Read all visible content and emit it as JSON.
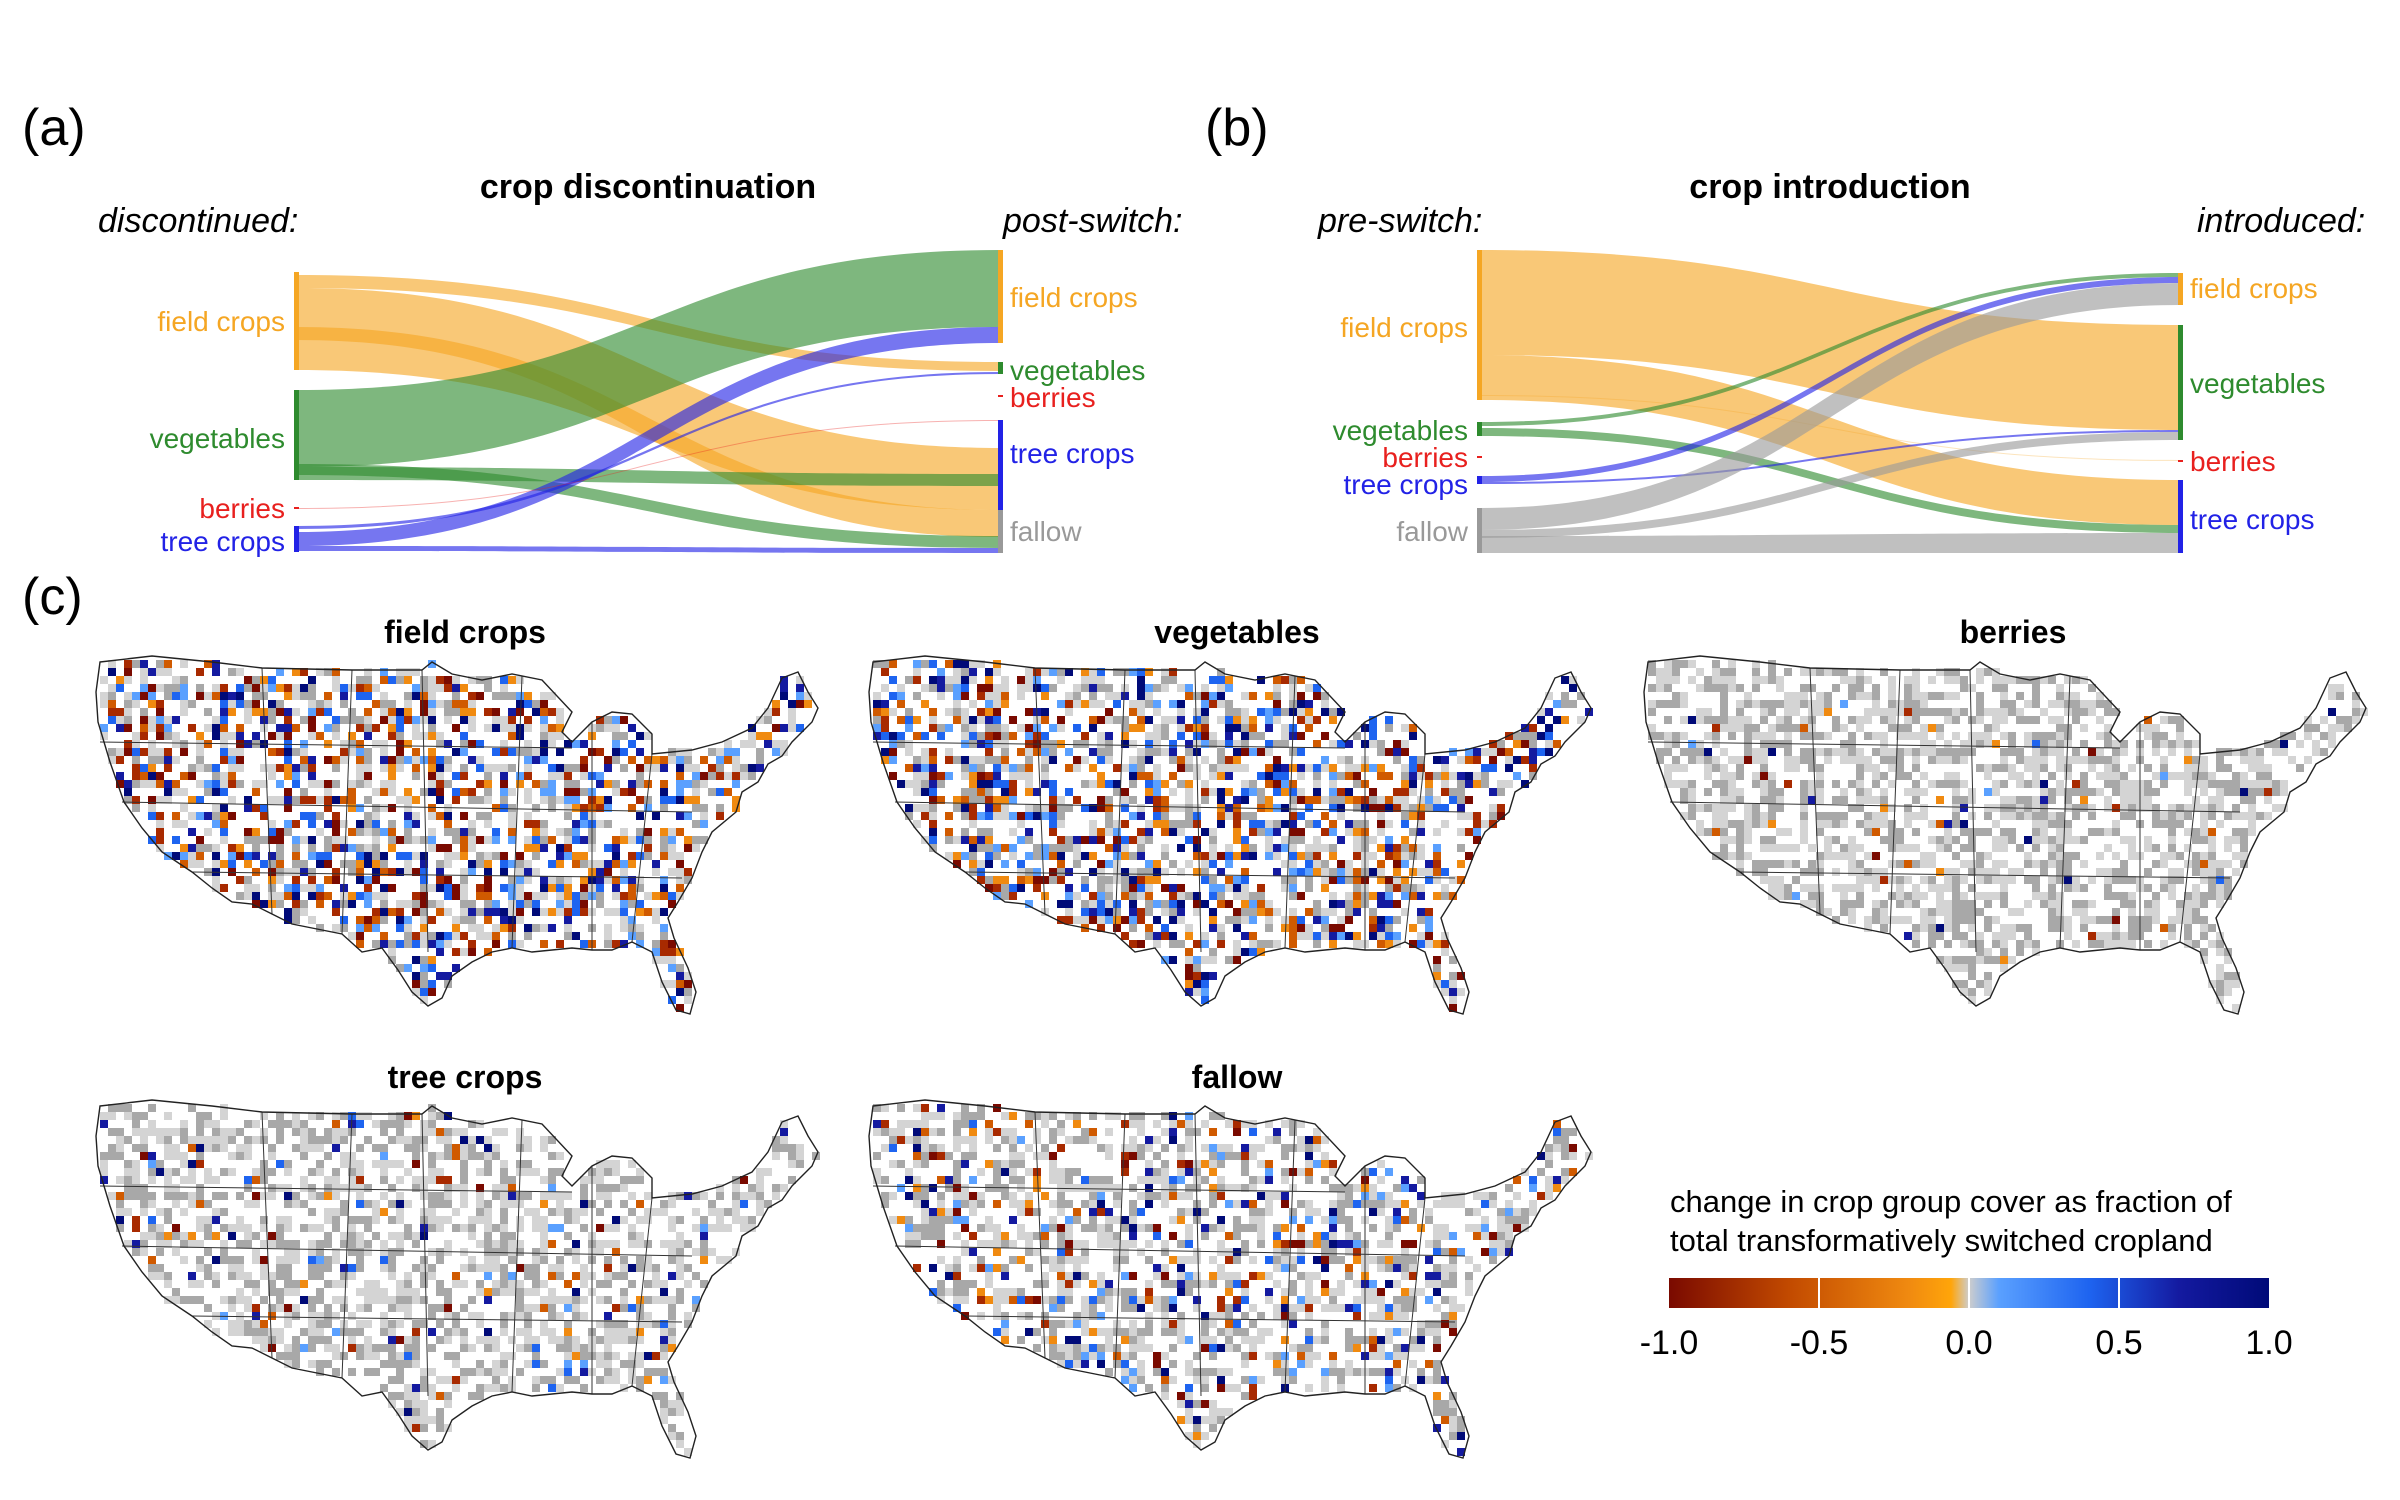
{
  "panel_a": {
    "label": "(a)",
    "title": "crop discontinuation",
    "left_header": "discontinued:",
    "right_header": "post-switch:",
    "left_nodes": [
      {
        "label": "field crops",
        "color": "#f5a623"
      },
      {
        "label": "vegetables",
        "color": "#2e8b2e"
      },
      {
        "label": "berries",
        "color": "#e8201e"
      },
      {
        "label": "tree crops",
        "color": "#2222e6"
      }
    ],
    "right_nodes": [
      {
        "label": "field crops",
        "color": "#f5a623"
      },
      {
        "label": "vegetables",
        "color": "#2e8b2e"
      },
      {
        "label": "berries",
        "color": "#e8201e"
      },
      {
        "label": "tree crops",
        "color": "#2222e6"
      },
      {
        "label": "fallow",
        "color": "#999999"
      }
    ]
  },
  "panel_b": {
    "label": "(b)",
    "title": "crop introduction",
    "left_header": "pre-switch:",
    "right_header": "introduced:",
    "left_nodes": [
      {
        "label": "field crops",
        "color": "#f5a623"
      },
      {
        "label": "vegetables",
        "color": "#2e8b2e"
      },
      {
        "label": "berries",
        "color": "#e8201e"
      },
      {
        "label": "tree crops",
        "color": "#2222e6"
      },
      {
        "label": "fallow",
        "color": "#999999"
      }
    ],
    "right_nodes": [
      {
        "label": "field crops",
        "color": "#f5a623"
      },
      {
        "label": "vegetables",
        "color": "#2e8b2e"
      },
      {
        "label": "berries",
        "color": "#e8201e"
      },
      {
        "label": "tree crops",
        "color": "#2222e6"
      }
    ]
  },
  "panel_c": {
    "label": "(c)",
    "maps": [
      {
        "title": "field crops"
      },
      {
        "title": "vegetables"
      },
      {
        "title": "berries"
      },
      {
        "title": "tree crops"
      },
      {
        "title": "fallow"
      }
    ]
  },
  "legend": {
    "title_line1": "change in crop group cover as fraction of",
    "title_line2": "total transformatively switched cropland",
    "ticks": [
      "-1.0",
      "-0.5",
      "0.0",
      "0.5",
      "1.0"
    ],
    "colors": [
      "#7a0a00",
      "#c24a00",
      "#f08a10",
      "#ffa50a",
      "#cdcdcd",
      "#5aa0ff",
      "#1e64f0",
      "#141aa0",
      "#000a78"
    ]
  }
}
